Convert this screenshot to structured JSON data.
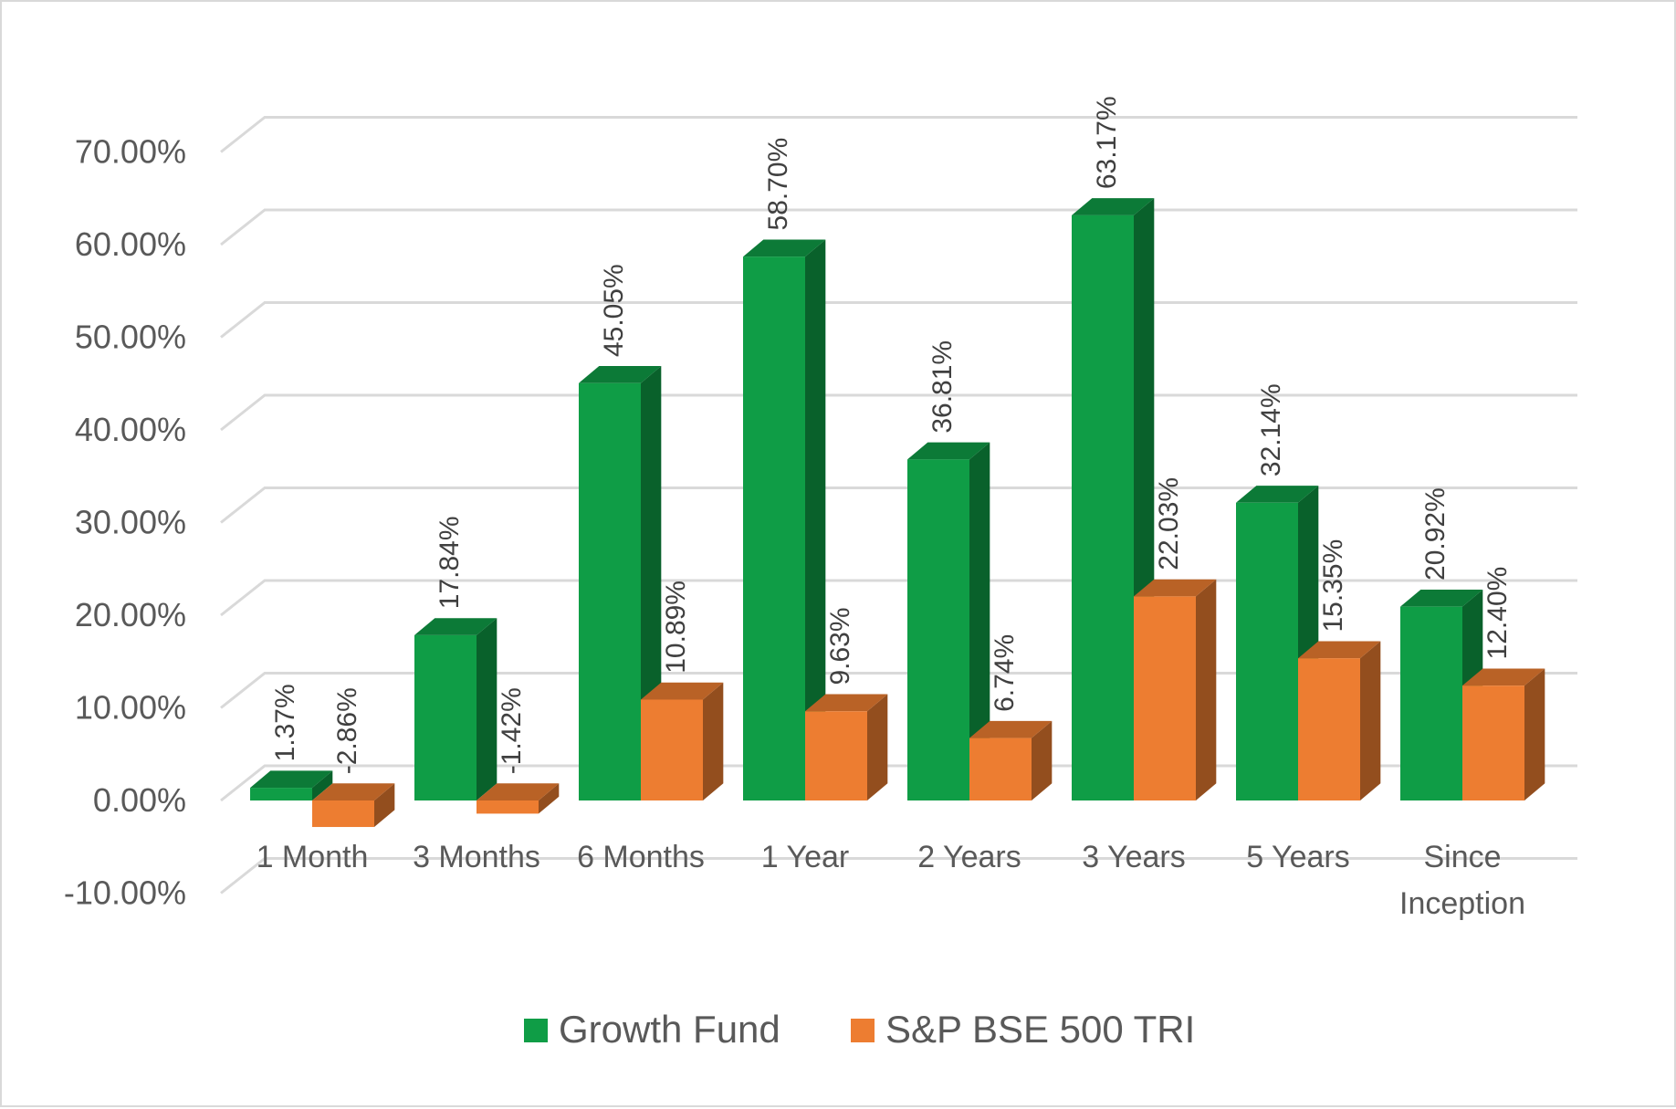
{
  "chart_data": {
    "type": "bar",
    "style": "3d-clustered-column",
    "categories": [
      "1 Month",
      "3 Months",
      "6 Months",
      "1 Year",
      "2 Years",
      "3 Years",
      "5 Years",
      "Since Inception"
    ],
    "series": [
      {
        "name": "Growth Fund",
        "color": "#0f9d46",
        "values": [
          1.37,
          17.84,
          45.05,
          58.7,
          36.81,
          63.17,
          32.14,
          20.92
        ],
        "labels": [
          "1.37%",
          "17.84%",
          "45.05%",
          "58.70%",
          "36.81%",
          "63.17%",
          "32.14%",
          "20.92%"
        ]
      },
      {
        "name": "S&P BSE 500 TRI",
        "color": "#ed7d31",
        "values": [
          -2.86,
          -1.42,
          10.89,
          9.63,
          6.74,
          22.03,
          15.35,
          12.4
        ],
        "labels": [
          "-2.86%",
          "-1.42%",
          "10.89%",
          "9.63%",
          "6.74%",
          "22.03%",
          "15.35%",
          "12.40%"
        ]
      }
    ],
    "yticks": [
      -10,
      0,
      10,
      20,
      30,
      40,
      50,
      60,
      70
    ],
    "ytick_labels": [
      "-10.00%",
      "0.00%",
      "10.00%",
      "20.00%",
      "30.00%",
      "40.00%",
      "50.00%",
      "60.00%",
      "70.00%"
    ],
    "ylim": [
      -10,
      70
    ],
    "title": "",
    "xlabel": "",
    "ylabel": "",
    "grid": true,
    "legend_position": "bottom"
  }
}
